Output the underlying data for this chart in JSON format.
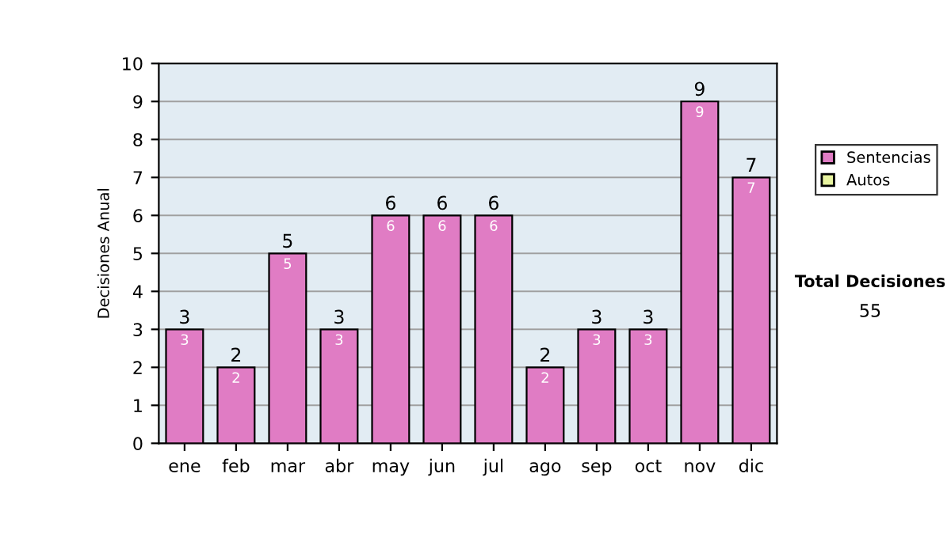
{
  "chart_data": {
    "type": "bar",
    "ylabel": "Decisiones Anual",
    "categories": [
      "ene",
      "feb",
      "mar",
      "abr",
      "may",
      "jun",
      "jul",
      "ago",
      "sep",
      "oct",
      "nov",
      "dic"
    ],
    "series": [
      {
        "name": "Sentencias",
        "color": "#e07cc4",
        "values": [
          3,
          2,
          5,
          3,
          6,
          6,
          6,
          2,
          3,
          3,
          9,
          7
        ]
      },
      {
        "name": "Autos",
        "color": "#e8f4a0",
        "values": [
          null,
          null,
          null,
          null,
          null,
          null,
          null,
          null,
          null,
          null,
          null,
          null
        ]
      }
    ],
    "stacked": true,
    "data_labels": true,
    "totals": [
      "3",
      "2",
      "5",
      "3",
      "6",
      "6",
      "6",
      "2",
      "3",
      "3",
      "9",
      "7"
    ],
    "ylim": [
      0,
      10
    ],
    "yticks": [
      0,
      1,
      2,
      3,
      4,
      5,
      6,
      7,
      8,
      9,
      10
    ],
    "grid": "y",
    "legend": "right",
    "annotations": [
      "Total Decisiones",
      "55"
    ]
  }
}
